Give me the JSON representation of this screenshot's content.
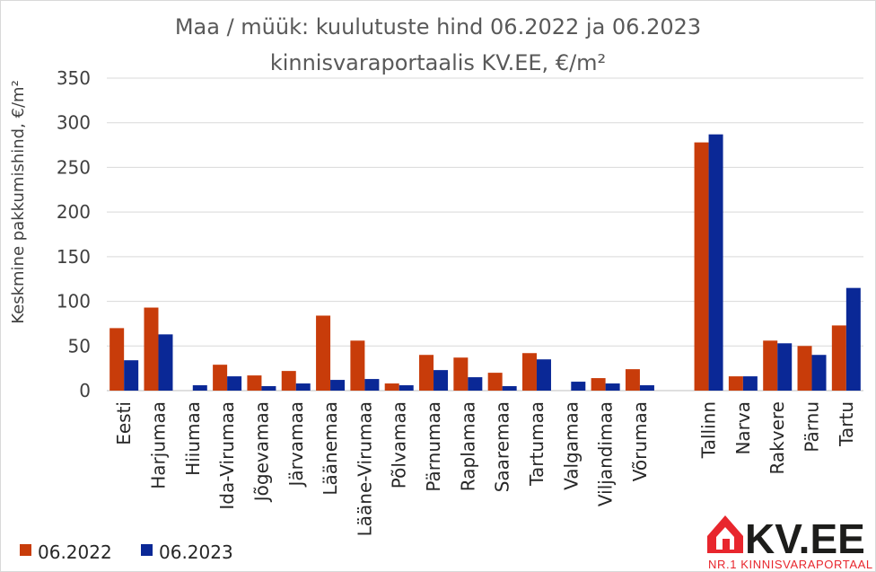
{
  "chart_data": {
    "type": "bar",
    "title_line1": "Maa / müük: kuulutuste hind 06.2022 ja 06.2023",
    "title_line2": "kinnisvaraportaalis KV.EE, €/m²",
    "ylabel": "Keskmine pakkumishind, €/m²",
    "ylim": [
      0,
      350
    ],
    "yticks": [
      "0",
      "50",
      "100",
      "150",
      "200",
      "250",
      "300",
      "350"
    ],
    "grid": true,
    "legend_position": "bottom-left",
    "categories": [
      "Eesti",
      "Harjumaa",
      "Hiiumaa",
      "Ida-Virumaa",
      "Jõgevamaa",
      "Järvamaa",
      "Läänemaa",
      "Lääne-Virumaa",
      "Põlvamaa",
      "Pärnumaa",
      "Raplamaa",
      "Saaremaa",
      "Tartumaa",
      "Valgamaa",
      "Viljandimaa",
      "Võrumaa",
      "",
      "Tallinn",
      "Narva",
      "Rakvere",
      "Pärnu",
      "Tartu"
    ],
    "series": [
      {
        "name": "06.2022",
        "color": "#C83C0A",
        "values": [
          70,
          93,
          0,
          29,
          17,
          22,
          84,
          56,
          8,
          40,
          37,
          20,
          42,
          0,
          14,
          24,
          null,
          278,
          16,
          56,
          50,
          73
        ]
      },
      {
        "name": "06.2023",
        "color": "#0A2896",
        "values": [
          34,
          63,
          6,
          16,
          5,
          8,
          12,
          13,
          6,
          23,
          15,
          5,
          35,
          10,
          8,
          6,
          null,
          287,
          16,
          53,
          40,
          115
        ]
      }
    ]
  },
  "logo": {
    "brand": "KV.EE",
    "tagline": "NR.1 KINNISVARAPORTAAL",
    "icon": "house-icon",
    "color": "#E8262D"
  }
}
